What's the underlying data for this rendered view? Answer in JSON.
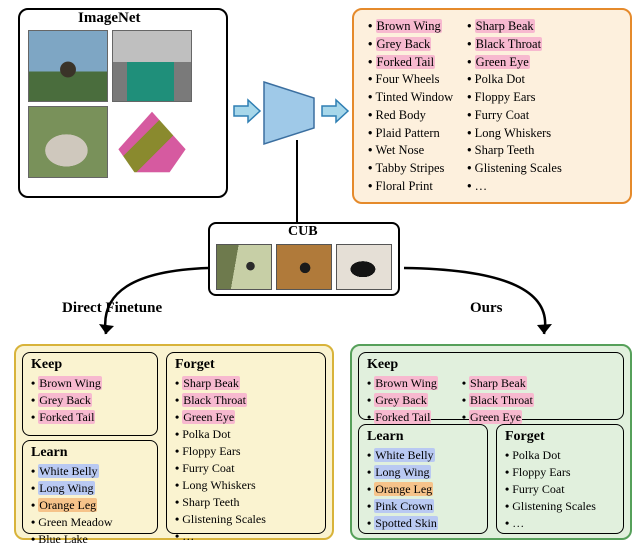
{
  "colors": {
    "hl_pink": "#f7b9cf",
    "hl_blue": "#b9c9f2",
    "hl_orange": "#f6c38a",
    "attr_border": "#e58a2b",
    "attr_bg": "#fdf0dd",
    "left_border": "#d8b33a",
    "left_bg": "#faf3d0",
    "right_border": "#56a05a",
    "right_bg": "#e1f0dd",
    "arrow_fill": "#a7d7ea",
    "arrow_stroke": "#2f7fb3",
    "model_fill": "#9fc9e8",
    "model_stroke": "#3b6fa0"
  },
  "imagenet": {
    "title": "ImageNet",
    "thumbs": {
      "tl": {
        "bg": "#7ea6c4",
        "shape": "bird",
        "fg": "#3a3328"
      },
      "tr": {
        "bg": "#d8d8d8",
        "shape": "truck",
        "fg": "#1f8f7a"
      },
      "bl": {
        "bg": "#79915a",
        "shape": "wolf",
        "fg": "#cfc8bd"
      },
      "br": {
        "bg": "#ede7e0",
        "shape": "poncho",
        "fg": "#d65aa0",
        "fg2": "#8a8a2e"
      }
    }
  },
  "cub": {
    "title": "CUB",
    "thumbs": {
      "a": {
        "bg": "#c7cfa6",
        "fg": "#2b2b2b"
      },
      "b": {
        "bg": "#b07a3a",
        "fg": "#1a1a1a"
      },
      "c": {
        "bg": "#e5dfd6",
        "fg": "#141414"
      }
    }
  },
  "attr_pool": {
    "left": [
      {
        "t": "Brown Wing",
        "hl": "pink"
      },
      {
        "t": "Grey Back",
        "hl": "pink"
      },
      {
        "t": "Forked Tail",
        "hl": "pink"
      },
      {
        "t": "Four Wheels",
        "hl": null
      },
      {
        "t": "Tinted Window",
        "hl": null
      },
      {
        "t": "Red Body",
        "hl": null
      },
      {
        "t": "Plaid Pattern",
        "hl": null
      },
      {
        "t": "Wet Nose",
        "hl": null
      },
      {
        "t": "Tabby Stripes",
        "hl": null
      },
      {
        "t": "Floral Print",
        "hl": null
      }
    ],
    "right": [
      {
        "t": "Sharp Beak",
        "hl": "pink"
      },
      {
        "t": "Black Throat",
        "hl": "pink"
      },
      {
        "t": "Green Eye",
        "hl": "pink"
      },
      {
        "t": "Polka Dot",
        "hl": null
      },
      {
        "t": "Floppy Ears",
        "hl": null
      },
      {
        "t": "Furry Coat",
        "hl": null
      },
      {
        "t": "Long Whiskers",
        "hl": null
      },
      {
        "t": "Sharp Teeth",
        "hl": null
      },
      {
        "t": "Glistening Scales",
        "hl": null
      },
      {
        "t": "…",
        "hl": null
      }
    ]
  },
  "branches": {
    "direct": "Direct Finetune",
    "ours": "Ours"
  },
  "left_box": {
    "keep": {
      "title": "Keep",
      "items": [
        {
          "t": "Brown Wing",
          "hl": "pink"
        },
        {
          "t": "Grey Back",
          "hl": "pink"
        },
        {
          "t": "Forked Tail",
          "hl": "pink"
        }
      ]
    },
    "learn": {
      "title": "Learn",
      "items": [
        {
          "t": "White Belly",
          "hl": "blue"
        },
        {
          "t": "Long Wing",
          "hl": "blue"
        },
        {
          "t": "Orange Leg",
          "hl": "orange"
        },
        {
          "t": "Green Meadow",
          "hl": null
        },
        {
          "t": "Blue Lake",
          "hl": null
        }
      ]
    },
    "forget": {
      "title": "Forget",
      "items": [
        {
          "t": "Sharp Beak",
          "hl": "pink"
        },
        {
          "t": "Black Throat",
          "hl": "pink"
        },
        {
          "t": "Green Eye",
          "hl": "pink"
        },
        {
          "t": "Polka Dot",
          "hl": null
        },
        {
          "t": "Floppy Ears",
          "hl": null
        },
        {
          "t": "Furry Coat",
          "hl": null
        },
        {
          "t": "Long Whiskers",
          "hl": null
        },
        {
          "t": "Sharp Teeth",
          "hl": null
        },
        {
          "t": "Glistening Scales",
          "hl": null
        },
        {
          "t": "…",
          "hl": null
        }
      ]
    }
  },
  "right_box": {
    "keep": {
      "title": "Keep",
      "left": [
        {
          "t": "Brown Wing",
          "hl": "pink"
        },
        {
          "t": "Grey Back",
          "hl": "pink"
        },
        {
          "t": "Forked Tail",
          "hl": "pink"
        }
      ],
      "right": [
        {
          "t": "Sharp Beak",
          "hl": "pink"
        },
        {
          "t": "Black Throat",
          "hl": "pink"
        },
        {
          "t": "Green Eye",
          "hl": "pink"
        }
      ]
    },
    "learn": {
      "title": "Learn",
      "items": [
        {
          "t": "White Belly",
          "hl": "blue"
        },
        {
          "t": "Long Wing",
          "hl": "blue"
        },
        {
          "t": "Orange Leg",
          "hl": "orange"
        },
        {
          "t": "Pink Crown",
          "hl": "blue"
        },
        {
          "t": "Spotted Skin",
          "hl": "blue"
        }
      ]
    },
    "forget": {
      "title": "Forget",
      "items": [
        {
          "t": "Polka Dot",
          "hl": null
        },
        {
          "t": "Floppy Ears",
          "hl": null
        },
        {
          "t": "Furry Coat",
          "hl": null
        },
        {
          "t": "Glistening Scales",
          "hl": null
        },
        {
          "t": "…",
          "hl": null
        }
      ]
    }
  },
  "typography": {
    "title_fontsize": 15,
    "body_fontsize": 12.5,
    "inner_title_fontsize": 14,
    "font_family": "Times New Roman"
  }
}
